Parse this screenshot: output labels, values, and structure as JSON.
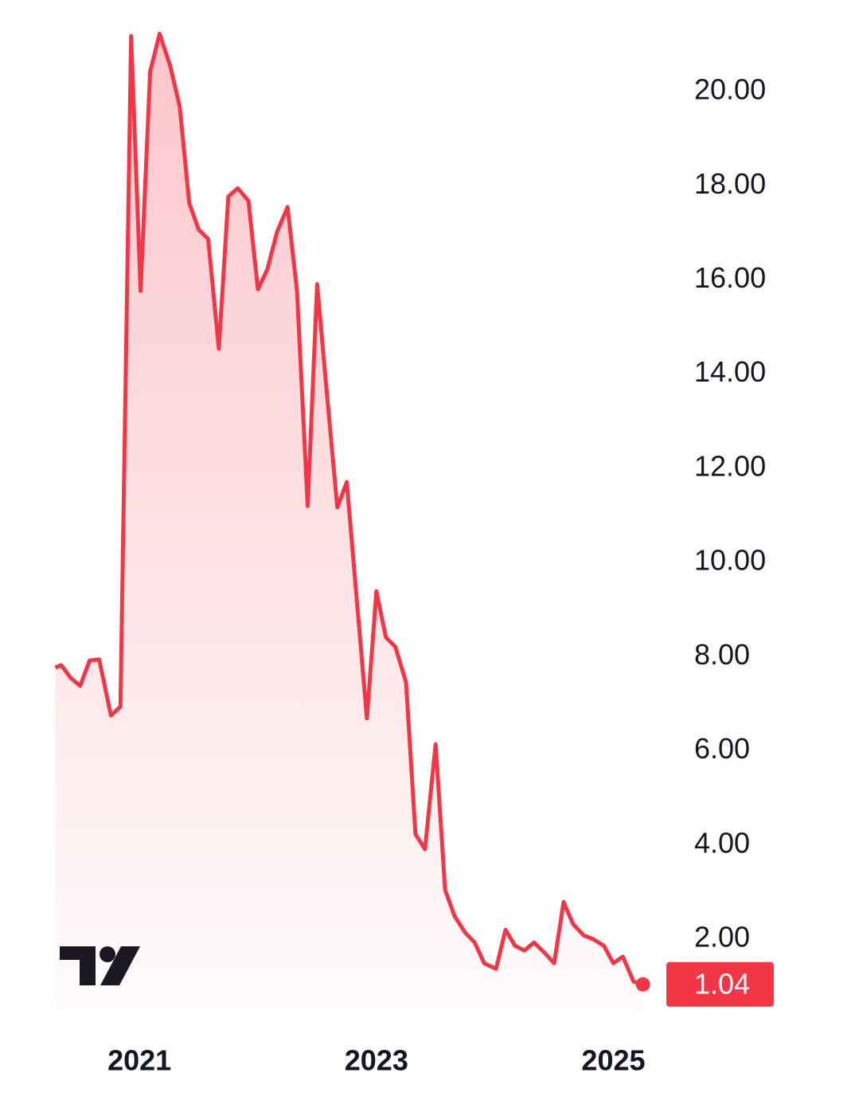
{
  "chart_data": {
    "type": "area",
    "x": [
      2020.29,
      2020.34,
      2020.42,
      2020.5,
      2020.58,
      2020.66,
      2020.76,
      2020.84,
      2020.93,
      2021.01,
      2021.09,
      2021.17,
      2021.26,
      2021.34,
      2021.42,
      2021.5,
      2021.58,
      2021.67,
      2021.75,
      2021.83,
      2021.92,
      2022.0,
      2022.08,
      2022.16,
      2022.25,
      2022.33,
      2022.42,
      2022.5,
      2022.59,
      2022.67,
      2022.75,
      2022.84,
      2022.92,
      2023.0,
      2023.08,
      2023.16,
      2023.25,
      2023.33,
      2023.41,
      2023.5,
      2023.58,
      2023.66,
      2023.75,
      2023.83,
      2023.91,
      2024.01,
      2024.09,
      2024.17,
      2024.25,
      2024.33,
      2024.42,
      2024.5,
      2024.58,
      2024.66,
      2024.75,
      2024.83,
      2024.92,
      2025.0,
      2025.08,
      2025.17,
      2025.25
    ],
    "values": [
      7.77,
      7.82,
      7.55,
      7.38,
      7.92,
      7.94,
      6.75,
      6.94,
      21.18,
      15.77,
      20.42,
      21.23,
      20.54,
      19.68,
      17.63,
      17.07,
      16.87,
      14.54,
      17.77,
      17.95,
      17.68,
      15.8,
      16.23,
      17.01,
      17.55,
      15.77,
      11.2,
      15.91,
      13.37,
      11.17,
      11.71,
      9.05,
      6.69,
      9.39,
      8.41,
      8.21,
      7.46,
      4.23,
      3.91,
      6.14,
      3.05,
      2.49,
      2.14,
      1.93,
      1.49,
      1.37,
      2.2,
      1.86,
      1.76,
      1.93,
      1.71,
      1.49,
      2.79,
      2.32,
      2.08,
      2.0,
      1.86,
      1.49,
      1.63,
      1.1,
      1.04
    ],
    "color": "#f23645",
    "xlim": [
      2020.28,
      2025.4
    ],
    "xticks": [
      2021,
      2023,
      2025
    ],
    "ylim": [
      0.5,
      21.9
    ],
    "yticks": [
      {
        "value": 2,
        "label": "2.00"
      },
      {
        "value": 4,
        "label": "4.00"
      },
      {
        "value": 6,
        "label": "6.00"
      },
      {
        "value": 8,
        "label": "8.00"
      },
      {
        "value": 10,
        "label": "10.00"
      },
      {
        "value": 12,
        "label": "12.00"
      },
      {
        "value": 14,
        "label": "14.00"
      },
      {
        "value": 16,
        "label": "16.00"
      },
      {
        "value": 18,
        "label": "18.00"
      },
      {
        "value": 20,
        "label": "20.00"
      }
    ]
  }
}
